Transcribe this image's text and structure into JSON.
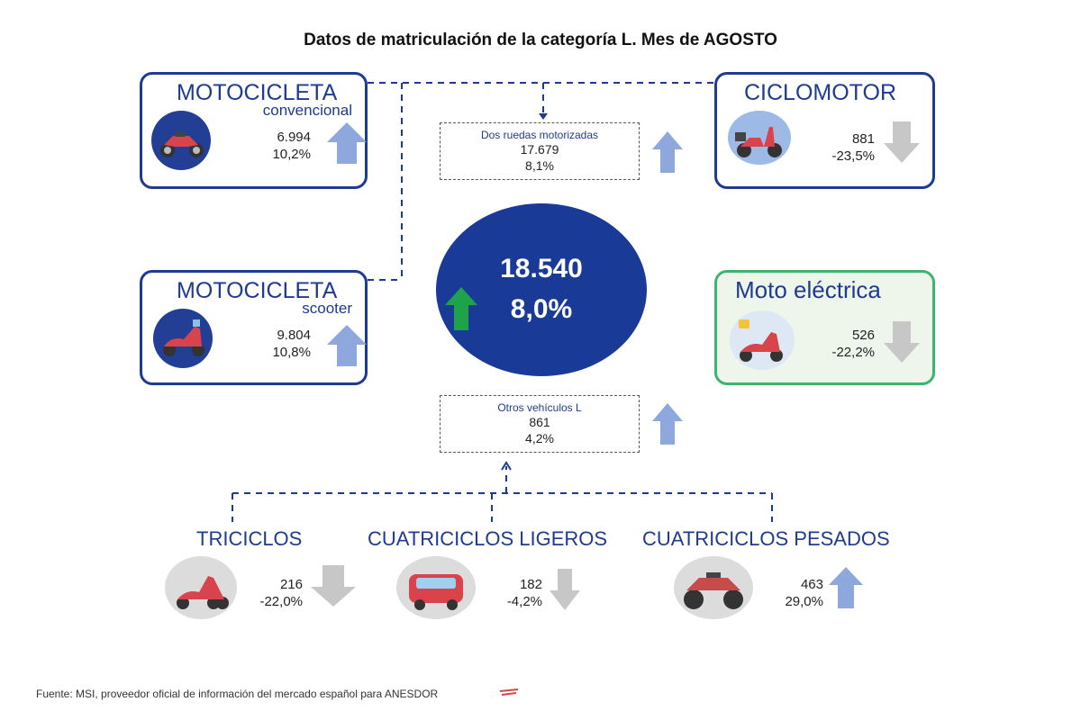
{
  "title": "Datos de matriculación de la categoría L. Mes de AGOSTO",
  "total": {
    "value": "18.540",
    "change": "8,0%"
  },
  "dos_ruedas": {
    "label": "Dos ruedas motorizadas",
    "value": "17.679",
    "change": "8,1%"
  },
  "otros": {
    "label": "Otros vehículos L",
    "value": "861",
    "change": "4,2%"
  },
  "moto_conv": {
    "title": "MOTOCICLETA",
    "subtitle": "convencional",
    "value": "6.994",
    "change": "10,2%"
  },
  "ciclomotor": {
    "title": "CICLOMOTOR",
    "value": "881",
    "change": "-23,5%"
  },
  "moto_scooter": {
    "title": "MOTOCICLETA",
    "subtitle": "scooter",
    "value": "9.804",
    "change": "10,8%"
  },
  "moto_electrica": {
    "title": "Moto eléctrica",
    "value": "526",
    "change": "-22,2%"
  },
  "triciclos": {
    "title": "TRICICLOS",
    "value": "216",
    "change": "-22,0%"
  },
  "cuad_ligeros": {
    "title": "CUATRICICLOS LIGEROS",
    "value": "182",
    "change": "-4,2%"
  },
  "cuad_pesados": {
    "title": "CUATRICICLOS PESADOS",
    "value": "463",
    "change": "29,0%"
  },
  "source": "Fuente: MSI, proveedor oficial de información del mercado español para ANESDOR",
  "colors": {
    "navy": "#1f3b8f",
    "up_arrow": "#8ea8dd",
    "down_arrow": "#c7c7c7",
    "center_up": "#1fa34a",
    "electric_border": "#3db46d"
  },
  "icons": [
    "motorcycle-icon",
    "moped-icon",
    "scooter-icon",
    "electric-scooter-icon",
    "trike-icon",
    "microcar-icon",
    "quad-icon"
  ]
}
